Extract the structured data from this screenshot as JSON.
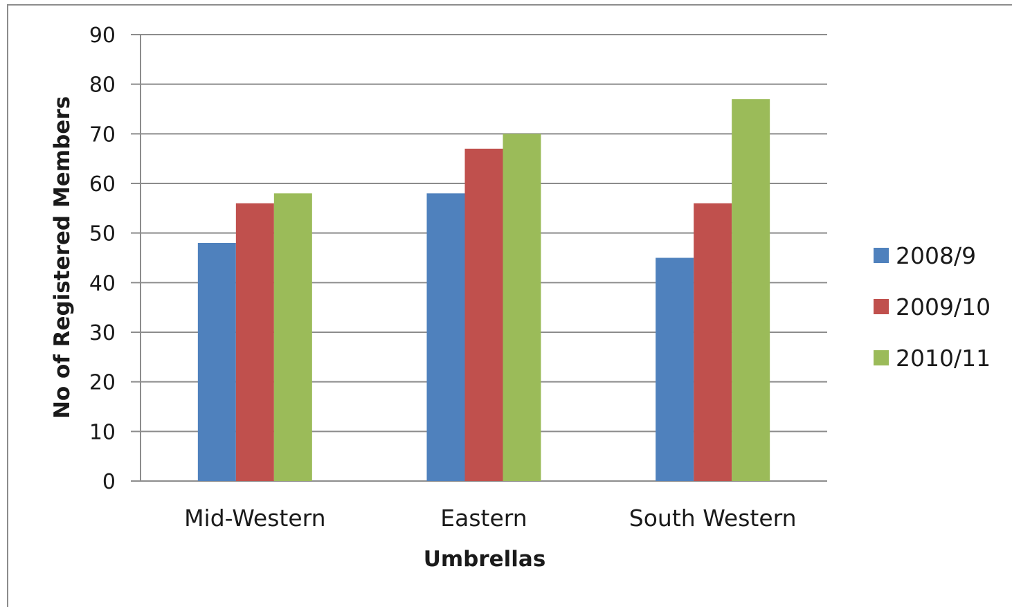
{
  "chart_data": {
    "type": "bar",
    "title": "",
    "xlabel": "Umbrellas",
    "ylabel": "No of Registered Members",
    "categories": [
      "Mid-Western",
      "Eastern",
      "South Western"
    ],
    "series": [
      {
        "name": "2008/9",
        "color": "#4f81bd",
        "values": [
          48,
          58,
          45
        ]
      },
      {
        "name": "2009/10",
        "color": "#c0504d",
        "values": [
          56,
          67,
          56
        ]
      },
      {
        "name": "2010/11",
        "color": "#9bbb59",
        "values": [
          58,
          70,
          77
        ]
      }
    ],
    "ylim": [
      0,
      90
    ],
    "yticks": [
      0,
      10,
      20,
      30,
      40,
      50,
      60,
      70,
      80,
      90
    ],
    "grid": true,
    "legend": "right"
  }
}
